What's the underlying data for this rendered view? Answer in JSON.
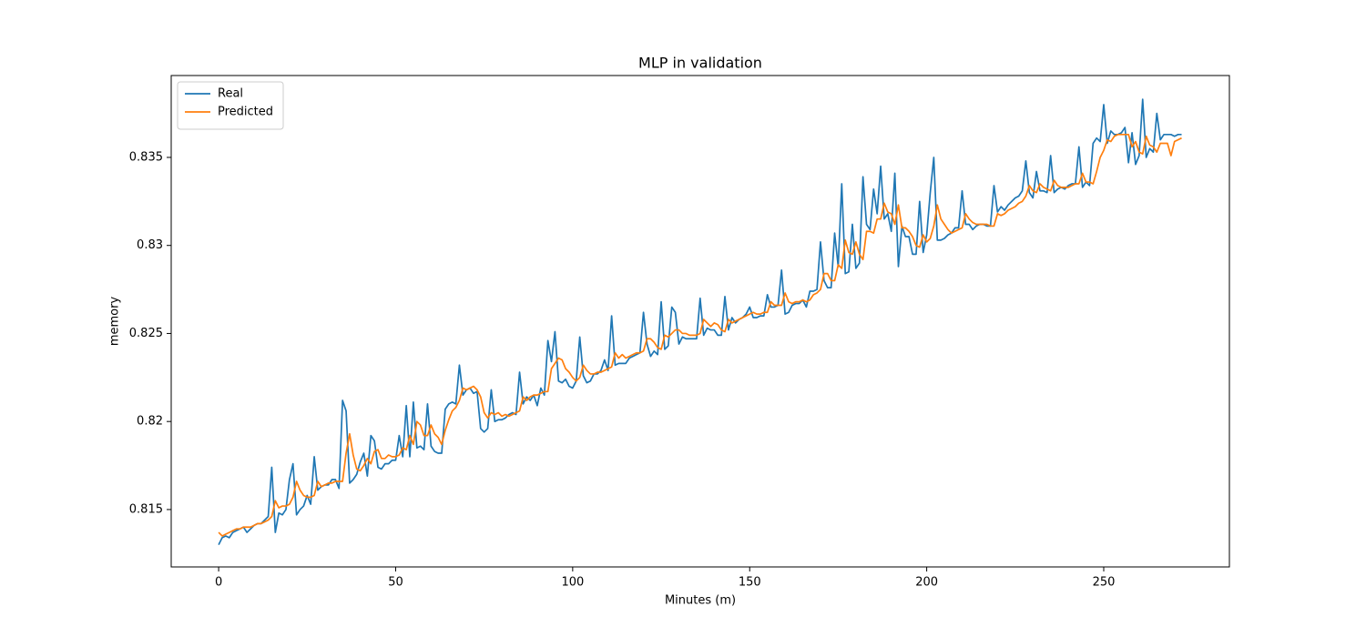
{
  "chart_data": {
    "type": "line",
    "title": "MLP in validation",
    "xlabel": "Minutes (m)",
    "ylabel": "memory",
    "x": [
      0,
      1,
      2,
      3,
      4,
      5,
      6,
      7,
      8,
      9,
      10,
      11,
      12,
      13,
      14,
      15,
      16,
      17,
      18,
      19,
      20,
      21,
      22,
      23,
      24,
      25,
      26,
      27,
      28,
      29,
      30,
      31,
      32,
      33,
      34,
      35,
      36,
      37,
      38,
      39,
      40,
      41,
      42,
      43,
      44,
      45,
      46,
      47,
      48,
      49,
      50,
      51,
      52,
      53,
      54,
      55,
      56,
      57,
      58,
      59,
      60,
      61,
      62,
      63,
      64,
      65,
      66,
      67,
      68,
      69,
      70,
      71,
      72,
      73,
      74,
      75,
      76,
      77,
      78,
      79,
      80,
      81,
      82,
      83,
      84,
      85,
      86,
      87,
      88,
      89,
      90,
      91,
      92,
      93,
      94,
      95,
      96,
      97,
      98,
      99,
      100,
      101,
      102,
      103,
      104,
      105,
      106,
      107,
      108,
      109,
      110,
      111,
      112,
      113,
      114,
      115,
      116,
      117,
      118,
      119,
      120,
      121,
      122,
      123,
      124,
      125,
      126,
      127,
      128,
      129,
      130,
      131,
      132,
      133,
      134,
      135,
      136,
      137,
      138,
      139,
      140,
      141,
      142,
      143,
      144,
      145,
      146,
      147,
      148,
      149,
      150,
      151,
      152,
      153,
      154,
      155,
      156,
      157,
      158,
      159,
      160,
      161,
      162,
      163,
      164,
      165,
      166,
      167,
      168,
      169,
      170,
      171,
      172,
      173,
      174,
      175,
      176,
      177,
      178,
      179,
      180,
      181,
      182,
      183,
      184,
      185,
      186,
      187,
      188,
      189,
      190,
      191,
      192,
      193,
      194,
      195,
      196,
      197,
      198,
      199,
      200,
      201,
      202,
      203,
      204,
      205,
      206,
      207,
      208,
      209,
      210,
      211,
      212,
      213,
      214,
      215,
      216,
      217,
      218,
      219,
      220,
      221,
      222,
      223,
      224,
      225,
      226,
      227,
      228,
      229,
      230,
      231,
      232,
      233,
      234,
      235,
      236,
      237,
      238,
      239,
      240,
      241,
      242,
      243,
      244,
      245,
      246,
      247,
      248,
      249,
      250,
      251,
      252,
      253,
      254,
      255,
      256,
      257,
      258,
      259,
      260,
      261,
      262,
      263,
      264,
      265,
      266,
      267,
      268,
      269,
      270,
      271,
      272
    ],
    "series": [
      {
        "name": "Real",
        "color": "#1f77b4",
        "values": [
          0.813,
          0.8134,
          0.8135,
          0.8134,
          0.8137,
          0.8138,
          0.8139,
          0.814,
          0.8137,
          0.8139,
          0.8141,
          0.8142,
          0.8142,
          0.8144,
          0.8146,
          0.8174,
          0.8137,
          0.8148,
          0.8147,
          0.815,
          0.8167,
          0.8176,
          0.8147,
          0.815,
          0.8152,
          0.8158,
          0.8153,
          0.818,
          0.8161,
          0.8163,
          0.8164,
          0.8164,
          0.8167,
          0.8167,
          0.8162,
          0.8212,
          0.8206,
          0.8165,
          0.8167,
          0.817,
          0.8177,
          0.8182,
          0.8169,
          0.8192,
          0.8189,
          0.8174,
          0.8173,
          0.8176,
          0.8176,
          0.8178,
          0.8178,
          0.8192,
          0.818,
          0.8209,
          0.818,
          0.8211,
          0.8185,
          0.8186,
          0.8184,
          0.821,
          0.8186,
          0.8183,
          0.8182,
          0.8182,
          0.8207,
          0.821,
          0.8211,
          0.821,
          0.8232,
          0.8215,
          0.8218,
          0.8219,
          0.8216,
          0.8217,
          0.8196,
          0.8194,
          0.8196,
          0.8218,
          0.82,
          0.8201,
          0.8201,
          0.8202,
          0.8204,
          0.8205,
          0.8204,
          0.8228,
          0.821,
          0.8214,
          0.8212,
          0.8215,
          0.8209,
          0.8219,
          0.8215,
          0.8246,
          0.8234,
          0.8251,
          0.8223,
          0.8222,
          0.8224,
          0.822,
          0.8219,
          0.8223,
          0.8248,
          0.8226,
          0.8222,
          0.8223,
          0.8227,
          0.8227,
          0.8229,
          0.8235,
          0.8229,
          0.826,
          0.8232,
          0.8233,
          0.8233,
          0.8233,
          0.8236,
          0.8237,
          0.8238,
          0.8239,
          0.8262,
          0.8244,
          0.8237,
          0.824,
          0.8238,
          0.8268,
          0.8241,
          0.8243,
          0.8265,
          0.8262,
          0.8244,
          0.8248,
          0.8247,
          0.8247,
          0.8247,
          0.8247,
          0.827,
          0.8249,
          0.8253,
          0.8252,
          0.8252,
          0.8249,
          0.8249,
          0.8271,
          0.8252,
          0.8259,
          0.8256,
          0.8258,
          0.8259,
          0.8261,
          0.8265,
          0.8259,
          0.8259,
          0.826,
          0.826,
          0.8272,
          0.8265,
          0.8265,
          0.8266,
          0.8286,
          0.8261,
          0.8262,
          0.8266,
          0.8267,
          0.8267,
          0.8269,
          0.8265,
          0.8274,
          0.8274,
          0.8275,
          0.8302,
          0.828,
          0.8276,
          0.8276,
          0.8307,
          0.8288,
          0.8335,
          0.8284,
          0.8285,
          0.8312,
          0.8287,
          0.829,
          0.8339,
          0.8312,
          0.8309,
          0.8332,
          0.8318,
          0.8345,
          0.8315,
          0.8318,
          0.8308,
          0.8341,
          0.8288,
          0.8311,
          0.8305,
          0.8305,
          0.8295,
          0.8295,
          0.8325,
          0.8296,
          0.8306,
          0.833,
          0.835,
          0.8303,
          0.8303,
          0.8304,
          0.8306,
          0.8307,
          0.831,
          0.831,
          0.8331,
          0.8312,
          0.8312,
          0.8309,
          0.8311,
          0.8312,
          0.8312,
          0.8311,
          0.8311,
          0.8334,
          0.8319,
          0.8322,
          0.832,
          0.8323,
          0.8325,
          0.8327,
          0.8328,
          0.8331,
          0.8348,
          0.833,
          0.8327,
          0.8342,
          0.8331,
          0.8331,
          0.833,
          0.8351,
          0.833,
          0.8332,
          0.8333,
          0.8332,
          0.8334,
          0.8335,
          0.8335,
          0.8356,
          0.8333,
          0.8336,
          0.8334,
          0.8358,
          0.8361,
          0.8359,
          0.838,
          0.8358,
          0.8365,
          0.8363,
          0.8363,
          0.8364,
          0.8367,
          0.8347,
          0.8364,
          0.8346,
          0.8351,
          0.8383,
          0.835,
          0.8355,
          0.8353,
          0.8375,
          0.836,
          0.8363,
          0.8363,
          0.8363,
          0.8362,
          0.8363,
          0.8363
        ]
      },
      {
        "name": "Predicted",
        "color": "#ff7f0e",
        "values": [
          0.8137,
          0.8135,
          0.8136,
          0.8137,
          0.8138,
          0.8139,
          0.8139,
          0.814,
          0.814,
          0.814,
          0.8141,
          0.8142,
          0.8142,
          0.8143,
          0.8144,
          0.8146,
          0.8155,
          0.8151,
          0.8152,
          0.8152,
          0.8153,
          0.8157,
          0.8166,
          0.8161,
          0.8158,
          0.8157,
          0.8157,
          0.8158,
          0.8166,
          0.8163,
          0.8164,
          0.8165,
          0.8165,
          0.8166,
          0.8166,
          0.8166,
          0.8182,
          0.8193,
          0.8181,
          0.8173,
          0.8172,
          0.8175,
          0.8179,
          0.8176,
          0.8183,
          0.8184,
          0.8179,
          0.8179,
          0.8181,
          0.818,
          0.818,
          0.8181,
          0.8185,
          0.8184,
          0.8192,
          0.8187,
          0.82,
          0.8198,
          0.8192,
          0.8192,
          0.8198,
          0.8193,
          0.8191,
          0.8187,
          0.8195,
          0.8201,
          0.8206,
          0.8208,
          0.8212,
          0.8219,
          0.8218,
          0.8219,
          0.822,
          0.8218,
          0.8214,
          0.8205,
          0.8202,
          0.8205,
          0.8204,
          0.8205,
          0.8203,
          0.8204,
          0.8203,
          0.8204,
          0.8205,
          0.8206,
          0.8214,
          0.8212,
          0.8214,
          0.8215,
          0.8215,
          0.8216,
          0.8217,
          0.8217,
          0.823,
          0.8233,
          0.8236,
          0.8235,
          0.823,
          0.8228,
          0.8225,
          0.8223,
          0.8225,
          0.8232,
          0.8229,
          0.8227,
          0.8227,
          0.8228,
          0.8228,
          0.8229,
          0.823,
          0.8231,
          0.8239,
          0.8236,
          0.8238,
          0.8236,
          0.8237,
          0.8238,
          0.8239,
          0.8239,
          0.824,
          0.8247,
          0.8247,
          0.8245,
          0.8242,
          0.8241,
          0.8249,
          0.8248,
          0.825,
          0.8252,
          0.8252,
          0.825,
          0.825,
          0.8249,
          0.8249,
          0.8249,
          0.825,
          0.8258,
          0.8256,
          0.8254,
          0.8256,
          0.8255,
          0.8252,
          0.8251,
          0.8258,
          0.8256,
          0.8257,
          0.8258,
          0.8259,
          0.826,
          0.8261,
          0.8262,
          0.8261,
          0.8261,
          0.8262,
          0.8262,
          0.8268,
          0.8266,
          0.8266,
          0.8266,
          0.8273,
          0.8268,
          0.8267,
          0.8268,
          0.8268,
          0.8269,
          0.8268,
          0.8269,
          0.8272,
          0.8273,
          0.8275,
          0.8284,
          0.8284,
          0.828,
          0.828,
          0.8289,
          0.8287,
          0.8303,
          0.8296,
          0.8295,
          0.8302,
          0.8295,
          0.8292,
          0.8308,
          0.8308,
          0.8307,
          0.8315,
          0.8315,
          0.8324,
          0.8319,
          0.8318,
          0.8312,
          0.8323,
          0.831,
          0.831,
          0.8308,
          0.8305,
          0.83,
          0.8299,
          0.8306,
          0.8302,
          0.8304,
          0.8311,
          0.8323,
          0.8315,
          0.8312,
          0.8309,
          0.8307,
          0.8308,
          0.8309,
          0.831,
          0.8318,
          0.8315,
          0.8313,
          0.8312,
          0.8312,
          0.8312,
          0.8312,
          0.8311,
          0.8311,
          0.8318,
          0.8317,
          0.8318,
          0.832,
          0.8321,
          0.8322,
          0.8324,
          0.8325,
          0.8328,
          0.8334,
          0.8331,
          0.833,
          0.8335,
          0.8333,
          0.8332,
          0.8331,
          0.8337,
          0.8334,
          0.8333,
          0.8333,
          0.8333,
          0.8334,
          0.8335,
          0.8335,
          0.8341,
          0.8336,
          0.8336,
          0.8335,
          0.8342,
          0.835,
          0.8354,
          0.836,
          0.8359,
          0.8362,
          0.8363,
          0.8363,
          0.8363,
          0.8363,
          0.8356,
          0.8359,
          0.8353,
          0.8352,
          0.8362,
          0.8357,
          0.8356,
          0.8353,
          0.8358,
          0.8358,
          0.8358,
          0.8351,
          0.8359,
          0.836,
          0.8361
        ]
      }
    ],
    "xlim": [
      -13.4,
      285.5
    ],
    "ylim": [
      0.81174,
      0.83965
    ],
    "xticks": [
      0,
      50,
      100,
      150,
      200,
      250
    ],
    "yticks": [
      0.815,
      0.82,
      0.825,
      0.83,
      0.835
    ],
    "legend": "upper left"
  }
}
